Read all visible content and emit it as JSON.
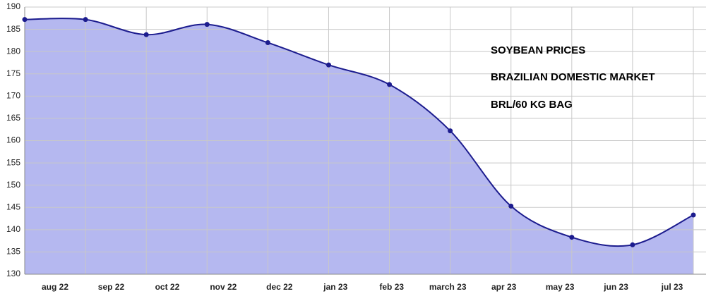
{
  "chart_data": {
    "type": "area",
    "title": [
      "SOYBEAN PRICES",
      "BRAZILIAN DOMESTIC MARKET",
      "BRL/60 KG BAG"
    ],
    "categories": [
      "aug 22",
      "sep 22",
      "oct 22",
      "nov 22",
      "dec 22",
      "jan 23",
      "feb 23",
      "march 23",
      "apr 23",
      "may 23",
      "jun 23",
      "jul 23"
    ],
    "values": [
      187.2,
      187.2,
      183.8,
      186.1,
      182,
      177,
      172.6,
      162.2,
      145.3,
      138.3,
      136.6,
      143.3
    ],
    "color": "#1c1c8e",
    "fill": "#b5b8f0",
    "ylim": [
      130,
      190
    ],
    "yticks": [
      130,
      135,
      140,
      145,
      150,
      155,
      160,
      165,
      170,
      175,
      180,
      185,
      190
    ],
    "grid": true
  }
}
